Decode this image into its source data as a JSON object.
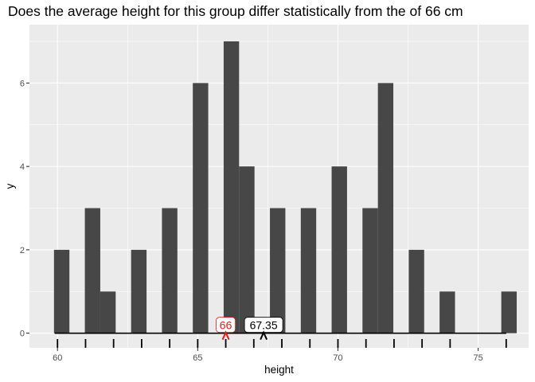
{
  "chart_data": {
    "type": "bar",
    "title": "Does the average height for this group differ statistically from the of 66 cm",
    "xlabel": "height",
    "ylabel": "y",
    "xlim": [
      59.0,
      76.8
    ],
    "ylim": [
      -0.35,
      7.4
    ],
    "x_ticks": [
      60,
      65,
      70,
      75
    ],
    "y_ticks": [
      0,
      2,
      4,
      6
    ],
    "bin_width": 0.55,
    "bins": [
      {
        "x": 60.15,
        "count": 2
      },
      {
        "x": 61.25,
        "count": 3
      },
      {
        "x": 61.8,
        "count": 1
      },
      {
        "x": 62.9,
        "count": 2
      },
      {
        "x": 64.0,
        "count": 3
      },
      {
        "x": 65.1,
        "count": 6
      },
      {
        "x": 66.2,
        "count": 7
      },
      {
        "x": 66.75,
        "count": 4
      },
      {
        "x": 67.85,
        "count": 3
      },
      {
        "x": 68.95,
        "count": 3
      },
      {
        "x": 70.05,
        "count": 4
      },
      {
        "x": 71.15,
        "count": 3
      },
      {
        "x": 71.7,
        "count": 6
      },
      {
        "x": 72.8,
        "count": 2
      },
      {
        "x": 73.9,
        "count": 1
      },
      {
        "x": 76.1,
        "count": 1
      }
    ],
    "rug_x": [
      60,
      61,
      62,
      63,
      64,
      65,
      66,
      67,
      68,
      69,
      70,
      71,
      72,
      73,
      74,
      76
    ],
    "range_segment": [
      59.9,
      76.0
    ],
    "annotations": [
      {
        "label": "66",
        "x": 66,
        "marker": "^",
        "color": "#e41a1c"
      },
      {
        "label": "67.35",
        "x": 67.35,
        "marker": "^",
        "color": "#000000"
      }
    ],
    "grid": true,
    "legend": "none",
    "colors": {
      "bar": "#474747",
      "panel": "#ebebeb",
      "grid": "#ffffff",
      "hypothesis": "#e41a1c"
    }
  }
}
